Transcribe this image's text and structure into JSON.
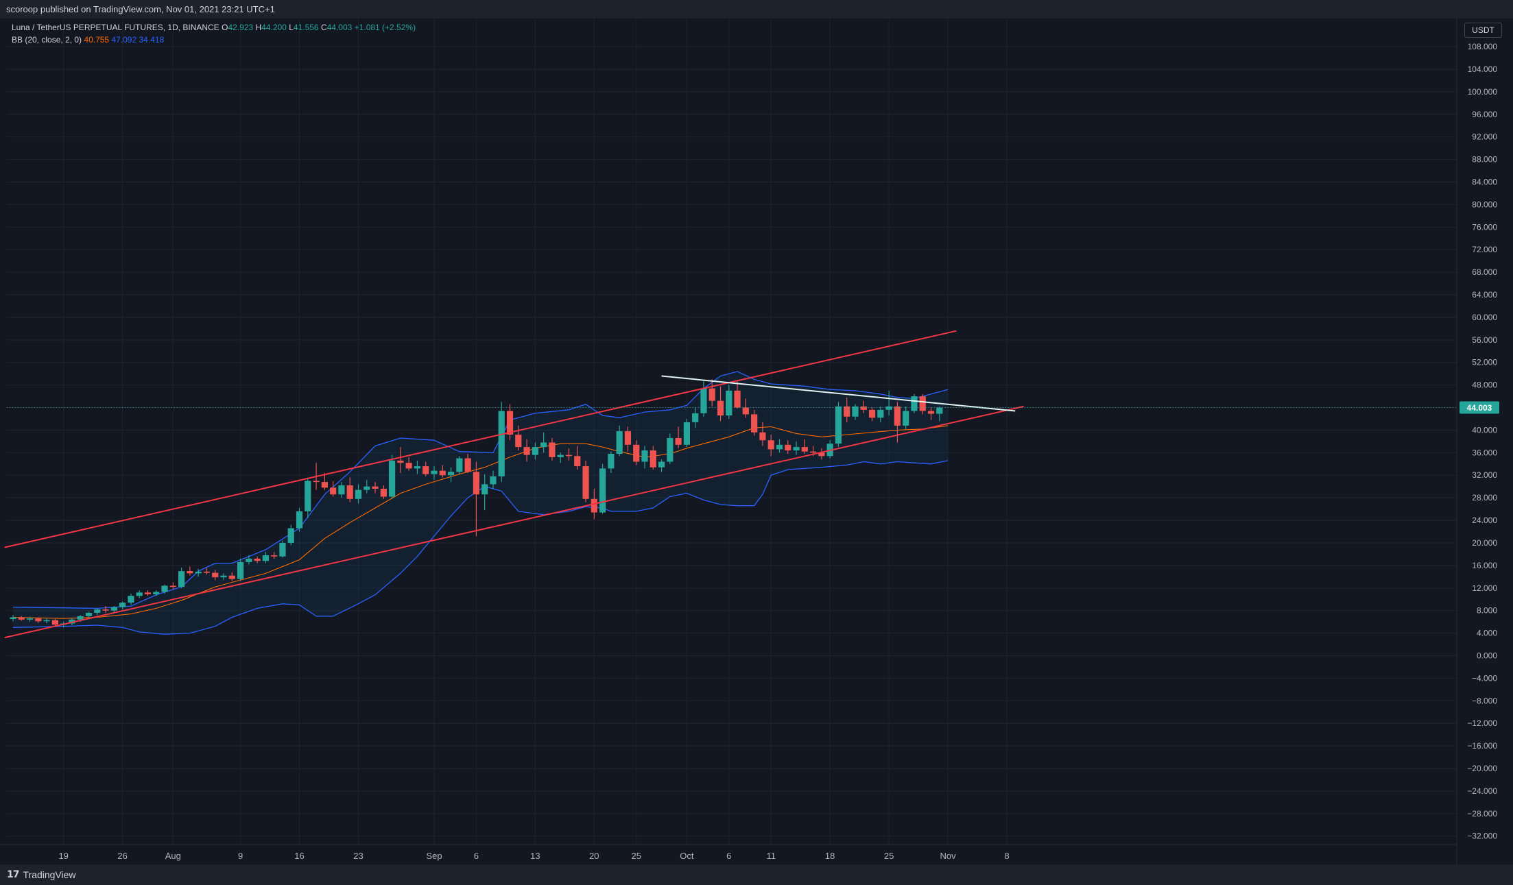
{
  "header": {
    "publisher_line": "scoroop published on TradingView.com, Nov 01, 2021 23:21 UTC+1"
  },
  "footer": {
    "brand_logo": "17",
    "brand_name": "TradingView"
  },
  "legend": {
    "symbol": "Luna / TetherUS PERPETUAL FUTURES, 1D, BINANCE",
    "o_label": "O",
    "o_value": "42.923",
    "h_label": "H",
    "h_value": "44.200",
    "l_label": "L",
    "l_value": "41.556",
    "c_label": "C",
    "c_value": "44.003",
    "change": "+1.081 (+2.52%)",
    "bb_label": "BB (20, close, 2, 0)",
    "bb_basis": "40.755",
    "bb_upper": "47.092",
    "bb_lower": "34.418"
  },
  "price_axis": {
    "unit": "USDT",
    "last_price": "44.003"
  },
  "colors": {
    "background": "#131722",
    "grid": "#1f2430",
    "up": "#26a69a",
    "down": "#ef5350",
    "bb_upper": "#2962ff",
    "bb_lower": "#2962ff",
    "bb_basis": "#ff6d00",
    "channel": "#f23645",
    "trendline": "#e0f2f1",
    "last_price_tag": "#26a69a"
  },
  "chart_data": {
    "type": "candlestick",
    "x_ticks": [
      {
        "label": "19",
        "i": 6
      },
      {
        "label": "26",
        "i": 13
      },
      {
        "label": "Aug",
        "i": 19
      },
      {
        "label": "9",
        "i": 27
      },
      {
        "label": "16",
        "i": 34
      },
      {
        "label": "23",
        "i": 41
      },
      {
        "label": "Sep",
        "i": 50
      },
      {
        "label": "6",
        "i": 55
      },
      {
        "label": "13",
        "i": 62
      },
      {
        "label": "20",
        "i": 69
      },
      {
        "label": "25",
        "i": 74
      },
      {
        "label": "Oct",
        "i": 80
      },
      {
        "label": "6",
        "i": 85
      },
      {
        "label": "11",
        "i": 90
      },
      {
        "label": "18",
        "i": 97
      },
      {
        "label": "25",
        "i": 104
      },
      {
        "label": "Nov",
        "i": 111
      },
      {
        "label": "8",
        "i": 118
      }
    ],
    "y_ticks": [
      108,
      104,
      100,
      96,
      92,
      88,
      84,
      80,
      76,
      72,
      68,
      64,
      60,
      56,
      52,
      48,
      44,
      40,
      36,
      32,
      28,
      24,
      20,
      16,
      12,
      8,
      4,
      0,
      -4,
      -8,
      -12,
      -16,
      -20,
      -24,
      -28,
      -32
    ],
    "ylim": [
      -33.5,
      113
    ],
    "candles": [
      [
        6.5,
        7.2,
        6.1,
        6.8
      ],
      [
        6.8,
        7.0,
        6.2,
        6.4
      ],
      [
        6.4,
        6.9,
        6.0,
        6.6
      ],
      [
        6.6,
        6.8,
        5.8,
        6.1
      ],
      [
        6.1,
        6.6,
        5.7,
        6.3
      ],
      [
        6.3,
        6.5,
        5.2,
        5.5
      ],
      [
        5.5,
        6.0,
        5.0,
        5.7
      ],
      [
        5.7,
        6.6,
        5.4,
        6.4
      ],
      [
        6.4,
        7.2,
        6.0,
        7.0
      ],
      [
        7.0,
        7.8,
        6.6,
        7.6
      ],
      [
        7.6,
        8.4,
        7.2,
        8.2
      ],
      [
        8.2,
        8.8,
        7.6,
        8.0
      ],
      [
        8.0,
        8.8,
        7.6,
        8.6
      ],
      [
        8.6,
        9.6,
        8.2,
        9.4
      ],
      [
        9.4,
        11.0,
        9.0,
        10.6
      ],
      [
        10.6,
        11.6,
        10.2,
        11.2
      ],
      [
        11.2,
        11.6,
        10.6,
        10.9
      ],
      [
        10.9,
        11.6,
        10.6,
        11.3
      ],
      [
        11.3,
        12.6,
        11.0,
        12.4
      ],
      [
        12.4,
        13.0,
        11.8,
        12.2
      ],
      [
        12.2,
        15.6,
        12.0,
        15.0
      ],
      [
        15.0,
        15.8,
        14.2,
        14.6
      ],
      [
        14.6,
        15.4,
        14.0,
        14.9
      ],
      [
        14.9,
        15.6,
        14.4,
        14.7
      ],
      [
        14.7,
        15.2,
        13.4,
        13.9
      ],
      [
        13.9,
        14.6,
        13.4,
        14.2
      ],
      [
        14.2,
        14.8,
        13.2,
        13.6
      ],
      [
        13.6,
        17.2,
        13.4,
        16.6
      ],
      [
        16.6,
        17.8,
        16.2,
        17.2
      ],
      [
        17.2,
        17.6,
        16.4,
        16.8
      ],
      [
        16.8,
        18.4,
        16.4,
        17.8
      ],
      [
        17.8,
        18.4,
        17.2,
        17.6
      ],
      [
        17.6,
        20.4,
        17.4,
        20.0
      ],
      [
        20.0,
        23.2,
        19.6,
        22.6
      ],
      [
        22.6,
        26.2,
        22.0,
        25.6
      ],
      [
        25.6,
        31.6,
        24.4,
        31.0
      ],
      [
        31.0,
        34.2,
        29.4,
        30.8
      ],
      [
        30.8,
        32.4,
        29.4,
        29.8
      ],
      [
        29.8,
        31.0,
        28.2,
        28.6
      ],
      [
        28.6,
        30.8,
        28.0,
        30.2
      ],
      [
        30.2,
        31.6,
        27.2,
        27.8
      ],
      [
        27.8,
        30.4,
        27.0,
        29.4
      ],
      [
        29.4,
        31.2,
        28.8,
        30.0
      ],
      [
        30.0,
        30.8,
        28.8,
        29.6
      ],
      [
        29.6,
        30.2,
        27.8,
        28.2
      ],
      [
        28.2,
        35.6,
        27.8,
        34.6
      ],
      [
        34.6,
        37.0,
        32.4,
        34.2
      ],
      [
        34.2,
        35.2,
        32.8,
        33.2
      ],
      [
        33.2,
        34.6,
        32.2,
        33.6
      ],
      [
        33.6,
        34.4,
        31.8,
        32.2
      ],
      [
        32.2,
        33.6,
        31.2,
        32.8
      ],
      [
        32.8,
        33.8,
        31.6,
        32.0
      ],
      [
        32.0,
        33.4,
        30.8,
        32.6
      ],
      [
        32.6,
        35.4,
        32.2,
        35.0
      ],
      [
        35.0,
        35.8,
        32.4,
        32.6
      ],
      [
        32.6,
        34.4,
        21.2,
        28.6
      ],
      [
        28.6,
        32.2,
        25.8,
        30.4
      ],
      [
        30.4,
        32.8,
        29.6,
        31.8
      ],
      [
        31.8,
        45.0,
        30.8,
        43.4
      ],
      [
        43.4,
        44.6,
        38.2,
        39.2
      ],
      [
        39.2,
        40.8,
        36.4,
        37.0
      ],
      [
        37.0,
        38.4,
        34.4,
        35.6
      ],
      [
        35.6,
        37.8,
        34.8,
        37.0
      ],
      [
        37.0,
        39.6,
        36.0,
        37.8
      ],
      [
        37.8,
        38.6,
        34.6,
        35.2
      ],
      [
        35.2,
        36.0,
        34.2,
        35.6
      ],
      [
        35.6,
        36.8,
        34.6,
        35.4
      ],
      [
        35.4,
        37.2,
        33.0,
        33.6
      ],
      [
        33.6,
        34.6,
        27.2,
        27.8
      ],
      [
        27.8,
        29.6,
        24.2,
        25.4
      ],
      [
        25.4,
        34.0,
        25.2,
        33.2
      ],
      [
        33.2,
        36.2,
        32.4,
        35.8
      ],
      [
        35.8,
        40.8,
        35.4,
        39.8
      ],
      [
        39.8,
        40.6,
        36.2,
        37.4
      ],
      [
        37.4,
        38.2,
        33.8,
        34.4
      ],
      [
        34.4,
        37.2,
        33.2,
        36.4
      ],
      [
        36.4,
        37.2,
        33.0,
        33.4
      ],
      [
        33.4,
        34.8,
        32.6,
        34.4
      ],
      [
        34.4,
        39.4,
        34.0,
        38.6
      ],
      [
        38.6,
        40.6,
        36.8,
        37.4
      ],
      [
        37.4,
        42.0,
        37.0,
        41.4
      ],
      [
        41.4,
        44.0,
        40.4,
        43.0
      ],
      [
        43.0,
        48.8,
        42.4,
        47.4
      ],
      [
        47.4,
        49.0,
        44.2,
        45.2
      ],
      [
        45.2,
        47.8,
        41.6,
        42.6
      ],
      [
        42.6,
        48.0,
        42.0,
        47.0
      ],
      [
        47.0,
        48.6,
        43.8,
        44.0
      ],
      [
        44.0,
        45.6,
        42.2,
        42.8
      ],
      [
        42.8,
        43.6,
        39.0,
        39.6
      ],
      [
        39.6,
        41.4,
        37.2,
        38.2
      ],
      [
        38.2,
        39.2,
        35.4,
        36.6
      ],
      [
        36.6,
        38.4,
        36.0,
        37.4
      ],
      [
        37.4,
        38.2,
        35.8,
        36.4
      ],
      [
        36.4,
        38.0,
        35.6,
        37.0
      ],
      [
        37.0,
        38.4,
        35.8,
        36.2
      ],
      [
        36.2,
        37.2,
        35.4,
        36.0
      ],
      [
        36.0,
        36.8,
        34.8,
        35.4
      ],
      [
        35.4,
        38.2,
        35.0,
        37.6
      ],
      [
        37.6,
        45.0,
        37.0,
        44.2
      ],
      [
        44.2,
        45.8,
        41.4,
        42.4
      ],
      [
        42.4,
        44.6,
        41.8,
        44.2
      ],
      [
        44.2,
        45.2,
        43.0,
        43.6
      ],
      [
        43.6,
        44.0,
        41.6,
        42.2
      ],
      [
        42.2,
        44.2,
        41.4,
        43.6
      ],
      [
        43.6,
        47.0,
        42.6,
        44.2
      ],
      [
        44.2,
        45.0,
        37.8,
        40.8
      ],
      [
        40.8,
        44.2,
        40.2,
        43.4
      ],
      [
        43.4,
        46.4,
        43.0,
        46.0
      ],
      [
        46.0,
        46.4,
        42.8,
        43.4
      ],
      [
        43.4,
        44.0,
        41.8,
        42.9
      ],
      [
        42.9,
        44.2,
        41.6,
        44.0
      ]
    ],
    "bb_upper_pts": [
      [
        0,
        8.6
      ],
      [
        10,
        8.4
      ],
      [
        14,
        8.8
      ],
      [
        17,
        10.8
      ],
      [
        20,
        12.2
      ],
      [
        22,
        15.0
      ],
      [
        24,
        16.4
      ],
      [
        26,
        16.4
      ],
      [
        30,
        18.8
      ],
      [
        34,
        22.6
      ],
      [
        37,
        28.6
      ],
      [
        40,
        32.6
      ],
      [
        43,
        37.2
      ],
      [
        46,
        38.6
      ],
      [
        50,
        38.2
      ],
      [
        53,
        36.2
      ],
      [
        57,
        36.0
      ],
      [
        59,
        41.8
      ],
      [
        62,
        43.0
      ],
      [
        66,
        43.6
      ],
      [
        68,
        44.6
      ],
      [
        70,
        42.6
      ],
      [
        72,
        42.2
      ],
      [
        75,
        43.2
      ],
      [
        78,
        43.6
      ],
      [
        80,
        44.4
      ],
      [
        82,
        47.4
      ],
      [
        84,
        49.6
      ],
      [
        86,
        50.4
      ],
      [
        88,
        49.0
      ],
      [
        90,
        48.2
      ],
      [
        94,
        47.8
      ],
      [
        97,
        47.2
      ],
      [
        100,
        47.0
      ],
      [
        103,
        46.4
      ],
      [
        105,
        45.8
      ],
      [
        107,
        45.6
      ],
      [
        109,
        46.4
      ],
      [
        111,
        47.2
      ]
    ],
    "bb_basis_pts": [
      [
        0,
        6.8
      ],
      [
        6,
        6.6
      ],
      [
        10,
        6.8
      ],
      [
        14,
        7.4
      ],
      [
        17,
        8.4
      ],
      [
        20,
        9.8
      ],
      [
        22,
        11.0
      ],
      [
        24,
        12.2
      ],
      [
        26,
        13.0
      ],
      [
        30,
        14.6
      ],
      [
        34,
        17.0
      ],
      [
        37,
        20.8
      ],
      [
        40,
        23.6
      ],
      [
        43,
        26.2
      ],
      [
        46,
        28.8
      ],
      [
        49,
        30.4
      ],
      [
        53,
        32.2
      ],
      [
        56,
        33.4
      ],
      [
        59,
        35.2
      ],
      [
        62,
        36.8
      ],
      [
        65,
        37.6
      ],
      [
        68,
        37.6
      ],
      [
        70,
        37.0
      ],
      [
        72,
        36.2
      ],
      [
        75,
        35.2
      ],
      [
        78,
        35.8
      ],
      [
        80,
        36.8
      ],
      [
        82,
        37.6
      ],
      [
        85,
        38.8
      ],
      [
        88,
        40.4
      ],
      [
        90,
        40.6
      ],
      [
        93,
        39.4
      ],
      [
        96,
        38.8
      ],
      [
        99,
        39.2
      ],
      [
        102,
        39.6
      ],
      [
        105,
        40.0
      ],
      [
        108,
        40.2
      ],
      [
        111,
        40.8
      ]
    ],
    "bb_lower_pts": [
      [
        0,
        5.0
      ],
      [
        6,
        5.2
      ],
      [
        10,
        5.4
      ],
      [
        13,
        5.0
      ],
      [
        15,
        4.2
      ],
      [
        18,
        3.8
      ],
      [
        21,
        4.0
      ],
      [
        24,
        5.2
      ],
      [
        26,
        6.8
      ],
      [
        29,
        8.4
      ],
      [
        32,
        9.2
      ],
      [
        34,
        9.0
      ],
      [
        36,
        7.0
      ],
      [
        38,
        7.0
      ],
      [
        41,
        9.2
      ],
      [
        43,
        10.8
      ],
      [
        46,
        14.6
      ],
      [
        48,
        17.6
      ],
      [
        50,
        21.2
      ],
      [
        52,
        24.8
      ],
      [
        54,
        28.0
      ],
      [
        56,
        30.0
      ],
      [
        58,
        29.2
      ],
      [
        60,
        25.6
      ],
      [
        63,
        25.0
      ],
      [
        66,
        25.6
      ],
      [
        68,
        26.4
      ],
      [
        70,
        26.2
      ],
      [
        71,
        25.6
      ],
      [
        74,
        25.6
      ],
      [
        76,
        26.2
      ],
      [
        78,
        28.2
      ],
      [
        80,
        28.8
      ],
      [
        82,
        27.6
      ],
      [
        84,
        26.8
      ],
      [
        86,
        26.6
      ],
      [
        88,
        26.6
      ],
      [
        89,
        28.6
      ],
      [
        90,
        32.0
      ],
      [
        92,
        33.0
      ],
      [
        96,
        33.4
      ],
      [
        99,
        33.8
      ],
      [
        101,
        34.4
      ],
      [
        103,
        34.0
      ],
      [
        105,
        34.4
      ],
      [
        107,
        34.2
      ],
      [
        109,
        34.0
      ],
      [
        111,
        34.6
      ]
    ],
    "channel_lines": [
      {
        "from": [
          -1,
          19.2
        ],
        "to": [
          112,
          57.6
        ]
      },
      {
        "from": [
          -1,
          3.2
        ],
        "to": [
          120,
          44.2
        ]
      },
      {
        "from": [
          77,
          49.6
        ],
        "to": [
          119,
          43.4
        ]
      }
    ],
    "last_price": 44.003
  }
}
